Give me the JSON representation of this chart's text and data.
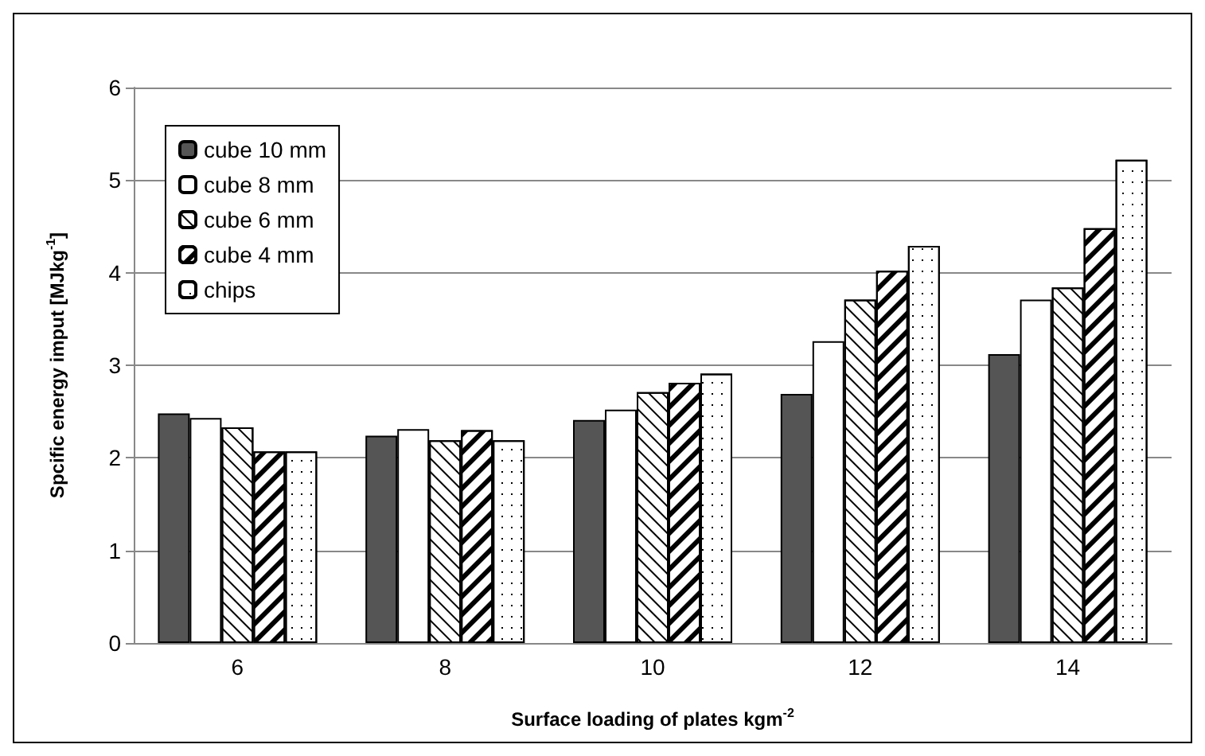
{
  "chart_data": {
    "type": "bar",
    "xlabel": "Surface loading of plates kgm$^{-2}$",
    "ylabel": "Spcific energy imput [MJkg$^{-1}$]",
    "categories": [
      "6",
      "8",
      "10",
      "12",
      "14"
    ],
    "series": [
      {
        "name": "cube 10 mm",
        "color": "#555555",
        "values": [
          2.48,
          2.24,
          2.41,
          2.69,
          3.12
        ]
      },
      {
        "name": "cube 8 mm",
        "color": "#ffffff",
        "values": [
          2.43,
          2.31,
          2.52,
          3.26,
          3.71
        ]
      },
      {
        "name": "cube 6 mm",
        "color": "#ffffff",
        "values": [
          2.33,
          2.19,
          2.71,
          3.71,
          3.84
        ]
      },
      {
        "name": "cube 4 mm",
        "color": "#ffffff",
        "values": [
          2.07,
          2.3,
          2.81,
          4.02,
          4.48
        ]
      },
      {
        "name": "chips",
        "color": "#ffffff",
        "values": [
          2.07,
          2.19,
          2.91,
          4.29,
          5.22
        ]
      }
    ],
    "ylim": [
      0,
      6
    ],
    "yticks": [
      0,
      1,
      2,
      3,
      4,
      5,
      6
    ],
    "grid": "y",
    "legend": "top left"
  }
}
